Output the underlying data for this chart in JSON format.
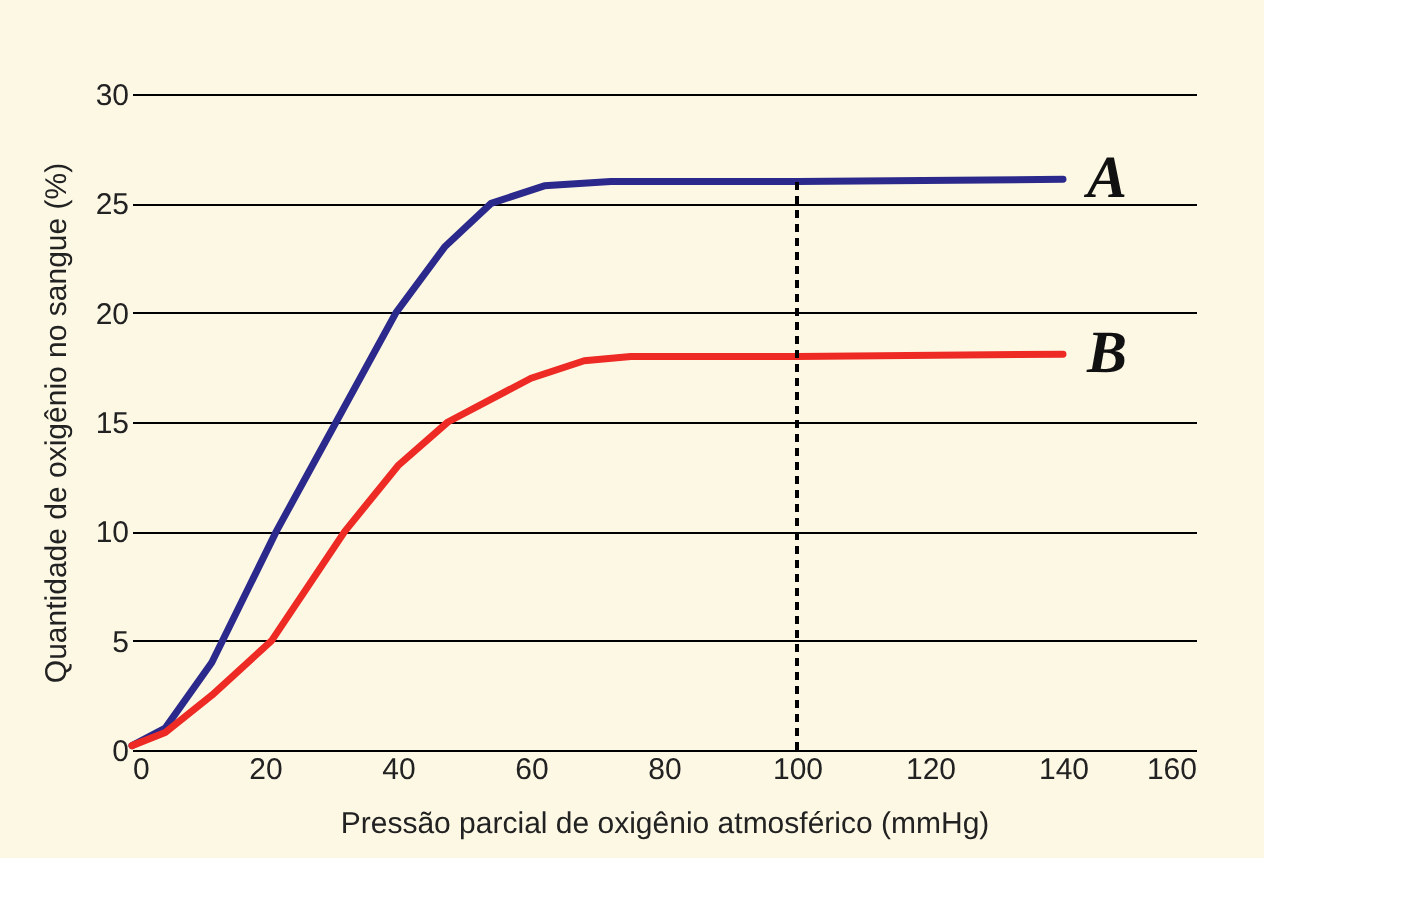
{
  "chart_data": {
    "type": "line",
    "xlabel": "Pressão parcial de oxigênio atmosférico (mmHg)",
    "ylabel": "Quantidade de oxigênio no sangue (%)",
    "xlim": [
      0,
      160
    ],
    "xticks": [
      0,
      20,
      40,
      60,
      80,
      100,
      120,
      140,
      160
    ],
    "ylim": [
      0,
      30
    ],
    "yticks": [
      0,
      5,
      10,
      15,
      20,
      25,
      30
    ],
    "grid": "y",
    "legend": false,
    "marker": "none",
    "line_style": "solid",
    "series": [
      {
        "name": "A",
        "color": "#2b2a8c",
        "x": [
          0,
          5,
          12,
          21.7,
          30.7,
          39.7,
          47,
          54,
          62,
          72,
          100,
          140
        ],
        "values": [
          0.2,
          1,
          4,
          10,
          15,
          20,
          23,
          25,
          25.8,
          26,
          26,
          26.1
        ]
      },
      {
        "name": "B",
        "color": "#ee2a24",
        "x": [
          0,
          5,
          12,
          21,
          32,
          40,
          47.5,
          60,
          68,
          75,
          100,
          140
        ],
        "values": [
          0.2,
          0.8,
          2.5,
          5,
          10,
          13,
          15,
          17,
          17.8,
          18,
          18,
          18.1
        ]
      }
    ],
    "ref_lines": [
      {
        "axis": "x",
        "value": 100,
        "label": null,
        "color": "#000000",
        "line_style": "dashed"
      }
    ]
  }
}
